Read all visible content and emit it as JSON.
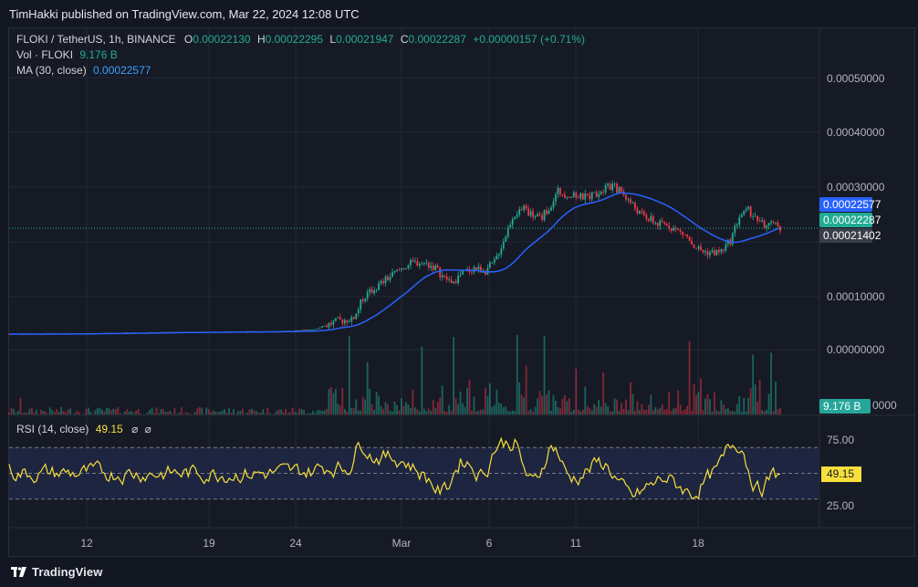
{
  "header": {
    "published_text": "TimHakki published on TradingView.com, Mar 22, 2024 12:08 UTC"
  },
  "legend": {
    "symbol": "FLOKI / TetherUS, 1h, BINANCE",
    "o_label": "O",
    "o_value": "0.00022130",
    "h_label": "H",
    "h_value": "0.00022295",
    "l_label": "L",
    "l_value": "0.00021947",
    "c_label": "C",
    "c_value": "0.00022287",
    "change": "+0.00000157 (+0.71%)",
    "vol_label": "Vol · FLOKI",
    "vol_value": "9.176 B",
    "ma_label": "MA (30, close)",
    "ma_value": "0.00022577"
  },
  "price_axis": {
    "labels": [
      "0.00050000",
      "0.00040000",
      "0.00030000",
      "0.00010000",
      "0.00000000",
      "0000"
    ]
  },
  "badges": {
    "ma": "0.00022577",
    "last": "0.00022287",
    "cross": "0.00021402",
    "volume": "9.176 B"
  },
  "rsi": {
    "label": "RSI (14, close)",
    "value": "49.15",
    "icons": [
      "⌀",
      "⌀"
    ],
    "axis": [
      "75.00",
      "25.00"
    ],
    "badge": "49.15"
  },
  "time_axis": {
    "labels": [
      "12",
      "19",
      "24",
      "Mar",
      "6",
      "11",
      "18"
    ]
  },
  "footer": {
    "brand": "TradingView"
  },
  "colors": {
    "up": "#22ab94",
    "down": "#f23645",
    "ma": "#2962ff",
    "rsi": "#f7e03c",
    "rsi_band": "#1e2540",
    "background": "#161a25",
    "grid": "#242838"
  },
  "chart_data": {
    "type": "candlestick",
    "symbol": "FLOKI / TetherUS",
    "interval": "1h",
    "exchange": "BINANCE",
    "ylim": [
      0.0,
      0.00052
    ],
    "price_path": [
      [
        0,
        2.85e-05
      ],
      [
        20,
        2.9e-05
      ],
      [
        40,
        3e-05
      ],
      [
        60,
        3.1e-05
      ],
      [
        80,
        3.2e-05
      ],
      [
        100,
        3.3e-05
      ],
      [
        115,
        3.3e-05
      ],
      [
        125,
        3.4e-05
      ],
      [
        135,
        3.8e-05
      ],
      [
        140,
        4.5e-05
      ],
      [
        145,
        5.2e-05
      ],
      [
        150,
        5.6e-05
      ],
      [
        153,
        6.5e-05
      ],
      [
        156,
        9.5e-05
      ],
      [
        160,
        0.000108
      ],
      [
        165,
        0.000125
      ],
      [
        170,
        0.00014
      ],
      [
        175,
        0.000155
      ],
      [
        180,
        0.00016
      ],
      [
        184,
        0.000158
      ],
      [
        188,
        0.00015
      ],
      [
        192,
        0.00013
      ],
      [
        196,
        0.000125
      ],
      [
        200,
        0.00014
      ],
      [
        205,
        0.00015
      ],
      [
        210,
        0.000145
      ],
      [
        214,
        0.00016
      ],
      [
        218,
        0.0002
      ],
      [
        222,
        0.000245
      ],
      [
        226,
        0.00026
      ],
      [
        230,
        0.00025
      ],
      [
        234,
        0.00024
      ],
      [
        238,
        0.00026
      ],
      [
        242,
        0.00029
      ],
      [
        246,
        0.000285
      ],
      [
        250,
        0.00028
      ],
      [
        254,
        0.00028
      ],
      [
        258,
        0.000285
      ],
      [
        262,
        0.000295
      ],
      [
        266,
        0.0003
      ],
      [
        270,
        0.00029
      ],
      [
        274,
        0.00027
      ],
      [
        278,
        0.00025
      ],
      [
        282,
        0.00024
      ],
      [
        286,
        0.00023
      ],
      [
        290,
        0.00023
      ],
      [
        294,
        0.00022
      ],
      [
        298,
        0.00021
      ],
      [
        302,
        0.00019
      ],
      [
        306,
        0.00018
      ],
      [
        310,
        0.000178
      ],
      [
        314,
        0.00018
      ],
      [
        318,
        0.0002
      ],
      [
        322,
        0.000245
      ],
      [
        326,
        0.000255
      ],
      [
        330,
        0.00024
      ],
      [
        334,
        0.000225
      ],
      [
        338,
        0.00023
      ],
      [
        340,
        0.000225
      ]
    ],
    "ma_period": 30,
    "ma_last": 0.00022577,
    "last_close": 0.00022287,
    "last_volume": "9.176 B",
    "rsi": {
      "period": 14,
      "last": 49.15,
      "levels": [
        25,
        75
      ]
    },
    "time_ticks": [
      "12",
      "19",
      "24",
      "Mar",
      "6",
      "11",
      "18"
    ]
  }
}
